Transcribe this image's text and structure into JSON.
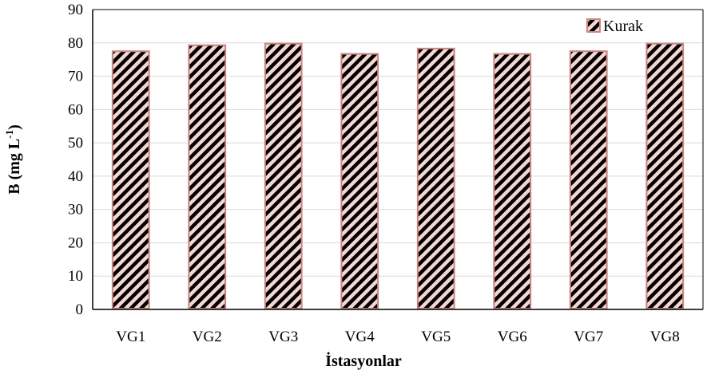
{
  "chart_data": {
    "type": "bar",
    "categories": [
      "VG1",
      "VG2",
      "VG3",
      "VG4",
      "VG5",
      "VG6",
      "VG7",
      "VG8"
    ],
    "series": [
      {
        "name": "Kurak",
        "values": [
          77.5,
          79.3,
          79.8,
          76.7,
          78.3,
          76.7,
          77.5,
          79.8
        ]
      }
    ],
    "xlabel": "İstasyonlar",
    "ylabel": "B (mg L",
    "ylabel_sup": "-1",
    "ylabel_close": ")",
    "ylim": [
      0,
      90
    ],
    "yticks": [
      0,
      10,
      20,
      30,
      40,
      50,
      60,
      70,
      80,
      90
    ],
    "grid": true,
    "legend_position": "top-right",
    "colors": {
      "bar_border": "#c9857f",
      "bar_fill": "#f4d6d2",
      "hatch": "#000000",
      "grid": "#d9d9d9",
      "axis": "#000000"
    }
  }
}
